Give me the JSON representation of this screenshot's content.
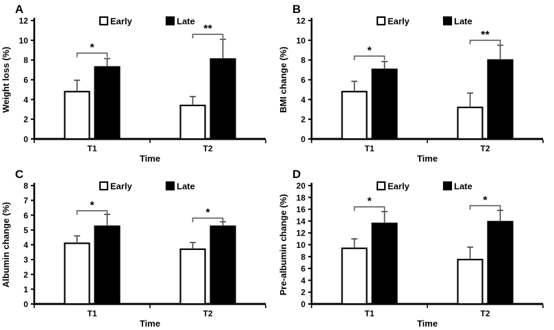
{
  "figure": {
    "background": "#ffffff",
    "axis_color": "#000000",
    "bar_stroke": "#000000",
    "error_bar_color": "#3f3f3f",
    "bracket_color": "#595959",
    "text_color": "#000000"
  },
  "legend": {
    "items": [
      {
        "label": "Early",
        "fill": "#ffffff"
      },
      {
        "label": "Late",
        "fill": "#000000"
      }
    ]
  },
  "chart_data": [
    {
      "panel_label": "A",
      "type": "bar",
      "title": "",
      "categories": [
        "T1",
        "T2"
      ],
      "xlabel": "Time",
      "ylabel": "Weight loss (%)",
      "ylim": [
        0,
        12
      ],
      "ytick_step": 2,
      "grid": false,
      "legend_position": "top-center",
      "series": [
        {
          "name": "Early",
          "fill": "#ffffff",
          "values": [
            4.8,
            3.4
          ],
          "errors": [
            1.15,
            0.9
          ]
        },
        {
          "name": "Late",
          "fill": "#000000",
          "values": [
            7.3,
            8.1
          ],
          "errors": [
            0.85,
            2.0
          ]
        }
      ],
      "significance": [
        {
          "category": "T1",
          "label": "*",
          "y": 8.7
        },
        {
          "category": "T2",
          "label": "**",
          "y": 10.6
        }
      ]
    },
    {
      "panel_label": "B",
      "type": "bar",
      "title": "",
      "categories": [
        "T1",
        "T2"
      ],
      "xlabel": "Time",
      "ylabel": "BMI change (%)",
      "ylim": [
        0,
        12
      ],
      "ytick_step": 2,
      "grid": false,
      "legend_position": "top-center",
      "series": [
        {
          "name": "Early",
          "fill": "#ffffff",
          "values": [
            4.8,
            3.2
          ],
          "errors": [
            1.05,
            1.45
          ]
        },
        {
          "name": "Late",
          "fill": "#000000",
          "values": [
            7.05,
            8.0
          ],
          "errors": [
            0.8,
            1.5
          ]
        }
      ],
      "significance": [
        {
          "category": "T1",
          "label": "*",
          "y": 8.4
        },
        {
          "category": "T2",
          "label": "**",
          "y": 10.0
        }
      ]
    },
    {
      "panel_label": "C",
      "type": "bar",
      "title": "",
      "categories": [
        "T1",
        "T2"
      ],
      "xlabel": "Time",
      "ylabel": "Albumin change (%)",
      "ylim": [
        0,
        8
      ],
      "ytick_step": 1,
      "grid": false,
      "legend_position": "top-center",
      "series": [
        {
          "name": "Early",
          "fill": "#ffffff",
          "values": [
            4.1,
            3.7
          ],
          "errors": [
            0.5,
            0.45
          ]
        },
        {
          "name": "Late",
          "fill": "#000000",
          "values": [
            5.25,
            5.25
          ],
          "errors": [
            0.8,
            0.3
          ]
        }
      ],
      "significance": [
        {
          "category": "T1",
          "label": "*",
          "y": 6.3
        },
        {
          "category": "T2",
          "label": "*",
          "y": 5.8
        }
      ]
    },
    {
      "panel_label": "D",
      "type": "bar",
      "title": "",
      "categories": [
        "T1",
        "T2"
      ],
      "xlabel": "Time",
      "ylabel": "Pre-albumin change (%)",
      "ylim": [
        0,
        20
      ],
      "ytick_step": 2,
      "grid": false,
      "legend_position": "top-center",
      "series": [
        {
          "name": "Early",
          "fill": "#ffffff",
          "values": [
            9.4,
            7.5
          ],
          "errors": [
            1.6,
            2.1
          ]
        },
        {
          "name": "Late",
          "fill": "#000000",
          "values": [
            13.6,
            13.9
          ],
          "errors": [
            2.0,
            1.9
          ]
        }
      ],
      "significance": [
        {
          "category": "T1",
          "label": "*",
          "y": 16.4
        },
        {
          "category": "T2",
          "label": "*",
          "y": 16.6
        }
      ]
    }
  ]
}
